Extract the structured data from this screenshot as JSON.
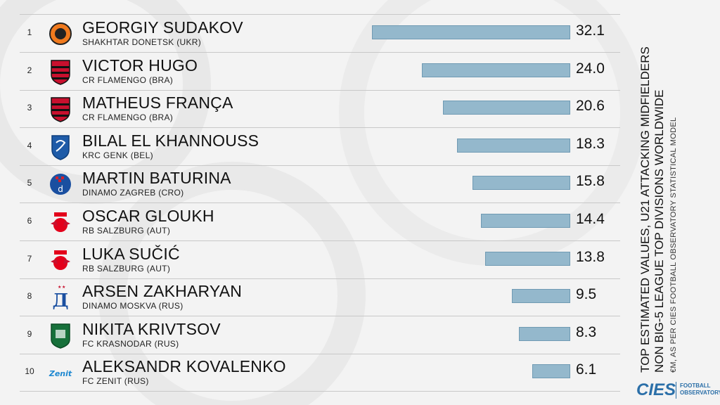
{
  "title_lines": [
    "TOP ESTIMATED VALUES, U21 ATTACKING MIDFIELDERS",
    "NON BIG-5 LEAGUE TOP DIVISIONS WORLDWIDE"
  ],
  "subtitle": "€M, AS PER CIES FOOTBALL OBSERVATORY STATISTICAL MODEL",
  "brand": {
    "logo": "CIES",
    "line1": "FOOTBALL",
    "line2": "OBSERVATORY"
  },
  "colors": {
    "bar": "#94b8cc",
    "bar_border": "#6f9ab3",
    "brand": "#2b6fa8",
    "background": "#f3f3f3"
  },
  "rows": [
    {
      "rank": "1",
      "name": "GEORGIY SUDAKOV",
      "club": "SHAKHTAR DONETSK (UKR)",
      "value": "32.1",
      "logo_icon": "shakhtar-crest-icon"
    },
    {
      "rank": "2",
      "name": "VICTOR HUGO",
      "club": "CR FLAMENGO (BRA)",
      "value": "24.0",
      "logo_icon": "flamengo-crest-icon"
    },
    {
      "rank": "3",
      "name": "MATHEUS FRANÇA",
      "club": "CR FLAMENGO (BRA)",
      "value": "20.6",
      "logo_icon": "flamengo-crest-icon"
    },
    {
      "rank": "4",
      "name": "BILAL EL KHANNOUSS",
      "club": "KRC GENK (BEL)",
      "value": "18.3",
      "logo_icon": "genk-crest-icon"
    },
    {
      "rank": "5",
      "name": "MARTIN BATURINA",
      "club": "DINAMO ZAGREB (CRO)",
      "value": "15.8",
      "logo_icon": "dinamo-zagreb-crest-icon"
    },
    {
      "rank": "6",
      "name": "OSCAR GLOUKH",
      "club": "RB SALZBURG (AUT)",
      "value": "14.4",
      "logo_icon": "salzburg-crest-icon"
    },
    {
      "rank": "7",
      "name": "LUKA SUČIĆ",
      "club": "RB SALZBURG (AUT)",
      "value": "13.8",
      "logo_icon": "salzburg-crest-icon"
    },
    {
      "rank": "8",
      "name": "ARSEN ZAKHARYAN",
      "club": "DINAMO MOSKVA (RUS)",
      "value": "9.5",
      "logo_icon": "dinamo-moskva-crest-icon"
    },
    {
      "rank": "9",
      "name": "NIKITA KRIVTSOV",
      "club": "FC KRASNODAR (RUS)",
      "value": "8.3",
      "logo_icon": "krasnodar-crest-icon"
    },
    {
      "rank": "10",
      "name": "ALEKSANDR KOVALENKO",
      "club": "FC ZENIT (RUS)",
      "value": "6.1",
      "logo_icon": "zenit-crest-icon"
    }
  ],
  "chart_data": {
    "type": "bar",
    "orientation": "horizontal",
    "categories": [
      "GEORGIY SUDAKOV",
      "VICTOR HUGO",
      "MATHEUS FRANÇA",
      "BILAL EL KHANNOUSS",
      "MARTIN BATURINA",
      "OSCAR GLOUKH",
      "LUKA SUČIĆ",
      "ARSEN ZAKHARYAN",
      "NIKITA KRIVTSOV",
      "ALEKSANDR KOVALENKO"
    ],
    "values": [
      32.1,
      24.0,
      20.6,
      18.3,
      15.8,
      14.4,
      13.8,
      9.5,
      8.3,
      6.1
    ],
    "title": "TOP ESTIMATED VALUES, U21 ATTACKING MIDFIELDERS NON BIG-5 LEAGUE TOP DIVISIONS WORLDWIDE",
    "subtitle": "€M, AS PER CIES FOOTBALL OBSERVATORY STATISTICAL MODEL",
    "grid": false,
    "legend": "none"
  }
}
